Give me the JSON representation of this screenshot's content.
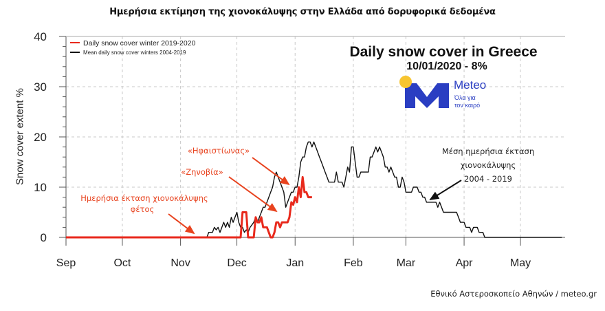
{
  "header": {
    "title": "Ημερήσια εκτίμηση της χιονοκάλυψης στην Ελλάδα από δορυφορικά δεδομένα"
  },
  "footer": {
    "source": "Εθνικό Αστεροσκοπείο Αθηνών / meteo.gr"
  },
  "overlay": {
    "chart_title": "Daily snow cover in Greece",
    "date_value": "10/01/2020 - 8%",
    "logo_name": "Meteo",
    "logo_tagline_1": "Όλα για",
    "logo_tagline_2": "τον καιρό",
    "brand_blue": "#2a3ec2",
    "brand_yellow": "#f7c531"
  },
  "annotations": {
    "current_label_1": "Ημερήσια έκταση χιονοκάλυψης",
    "current_label_2": "φέτος",
    "storm_1": "«Ζηνοβία»",
    "storm_2": "«Ηφαιστίωνας»",
    "mean_label_1": "Μέση ημερήσια έκταση",
    "mean_label_2": "χιονοκάλυψης",
    "mean_label_3": "2004 - 2019",
    "annotation_color": "#e8431f"
  },
  "chart_data": {
    "type": "line",
    "title": "Daily snow cover in Greece",
    "subtitle": "10/01/2020 - 8%",
    "xlabel": "",
    "ylabel": "Snow cover extent %",
    "ylim": [
      0,
      40
    ],
    "yticks": [
      0,
      10,
      20,
      30,
      40
    ],
    "xticks": [
      "Sep",
      "Oct",
      "Nov",
      "Dec",
      "Jan",
      "Feb",
      "Mar",
      "Apr",
      "May"
    ],
    "x_unit": "days since 1 Sep",
    "xlim": [
      0,
      264
    ],
    "grid": true,
    "legend_position": "upper left",
    "legend": [
      "Daily snow cover winter 2019-2020",
      "Mean daily snow cover winters 2004-2019"
    ],
    "series": [
      {
        "name": "Daily snow cover winter 2019-2020",
        "color": "#e8291c",
        "points": [
          [
            0,
            0
          ],
          [
            92,
            0
          ],
          [
            93,
            0
          ],
          [
            94,
            5
          ],
          [
            96,
            5
          ],
          [
            97,
            0
          ],
          [
            99,
            0
          ],
          [
            100,
            0
          ],
          [
            101,
            4
          ],
          [
            102,
            3
          ],
          [
            103,
            3
          ],
          [
            104,
            4
          ],
          [
            105,
            2
          ],
          [
            107,
            2
          ],
          [
            108,
            1
          ],
          [
            109,
            0
          ],
          [
            110,
            0
          ],
          [
            111,
            1
          ],
          [
            112,
            3
          ],
          [
            113,
            3
          ],
          [
            114,
            2
          ],
          [
            115,
            3
          ],
          [
            118,
            3
          ],
          [
            119,
            4
          ],
          [
            120,
            7
          ],
          [
            121,
            6.5
          ],
          [
            122,
            8
          ],
          [
            123,
            7
          ],
          [
            124,
            10
          ],
          [
            125,
            8
          ],
          [
            126,
            12
          ],
          [
            127,
            9
          ],
          [
            128,
            9
          ],
          [
            129,
            8
          ],
          [
            131,
            8
          ]
        ]
      },
      {
        "name": "Mean daily snow cover winters 2004-2019",
        "color": "#111111",
        "points": [
          [
            0,
            0
          ],
          [
            75,
            0
          ],
          [
            76,
            1
          ],
          [
            78,
            1
          ],
          [
            79,
            2
          ],
          [
            80,
            1.5
          ],
          [
            81,
            2
          ],
          [
            82,
            1
          ],
          [
            83,
            2
          ],
          [
            84,
            3
          ],
          [
            85,
            2
          ],
          [
            86,
            3
          ],
          [
            87,
            2
          ],
          [
            88,
            4
          ],
          [
            89,
            3
          ],
          [
            90,
            4
          ],
          [
            91,
            5
          ],
          [
            92,
            3
          ],
          [
            93,
            2
          ],
          [
            94,
            2
          ],
          [
            95,
            1
          ],
          [
            96,
            1.5
          ],
          [
            97,
            1
          ],
          [
            98,
            2
          ],
          [
            99,
            2.5
          ],
          [
            100,
            3
          ],
          [
            101,
            4
          ],
          [
            102,
            3
          ],
          [
            103,
            4
          ],
          [
            104,
            5
          ],
          [
            105,
            6
          ],
          [
            106,
            6
          ],
          [
            107,
            7
          ],
          [
            108,
            8
          ],
          [
            109,
            9
          ],
          [
            110,
            10
          ],
          [
            111,
            12
          ],
          [
            112,
            13
          ],
          [
            113,
            12
          ],
          [
            114,
            11
          ],
          [
            115,
            10
          ],
          [
            116,
            9
          ],
          [
            117,
            6
          ],
          [
            118,
            7
          ],
          [
            119,
            8
          ],
          [
            120,
            9
          ],
          [
            121,
            9
          ],
          [
            122,
            10
          ],
          [
            123,
            10
          ],
          [
            124,
            12
          ],
          [
            125,
            15
          ],
          [
            126,
            16
          ],
          [
            127,
            16
          ],
          [
            128,
            18
          ],
          [
            129,
            19
          ],
          [
            130,
            19
          ],
          [
            131,
            18
          ],
          [
            132,
            19
          ],
          [
            133,
            18
          ],
          [
            134,
            17
          ],
          [
            135,
            16
          ],
          [
            136,
            15
          ],
          [
            137,
            14
          ],
          [
            138,
            13
          ],
          [
            139,
            12
          ],
          [
            140,
            11
          ],
          [
            141,
            11
          ],
          [
            142,
            11
          ],
          [
            143,
            11
          ],
          [
            144,
            13
          ],
          [
            145,
            11
          ],
          [
            146,
            11
          ],
          [
            147,
            11
          ],
          [
            148,
            10
          ],
          [
            149,
            12
          ],
          [
            150,
            14
          ],
          [
            151,
            13
          ],
          [
            152,
            18
          ],
          [
            153,
            18
          ],
          [
            154,
            15
          ],
          [
            155,
            12
          ],
          [
            156,
            12
          ],
          [
            157,
            13
          ],
          [
            158,
            13
          ],
          [
            159,
            13
          ],
          [
            160,
            13
          ],
          [
            161,
            13
          ],
          [
            162,
            16
          ],
          [
            163,
            16
          ],
          [
            164,
            17
          ],
          [
            165,
            18
          ],
          [
            166,
            17
          ],
          [
            167,
            18
          ],
          [
            168,
            17
          ],
          [
            169,
            16
          ],
          [
            170,
            14
          ],
          [
            171,
            14
          ],
          [
            172,
            13
          ],
          [
            173,
            14
          ],
          [
            174,
            13
          ],
          [
            175,
            12
          ],
          [
            176,
            12
          ],
          [
            177,
            10
          ],
          [
            178,
            10
          ],
          [
            179,
            12
          ],
          [
            180,
            11
          ],
          [
            181,
            9
          ],
          [
            182,
            9
          ],
          [
            183,
            9
          ],
          [
            184,
            9
          ],
          [
            185,
            10
          ],
          [
            186,
            10
          ],
          [
            187,
            10
          ],
          [
            188,
            9
          ],
          [
            189,
            9
          ],
          [
            190,
            8
          ],
          [
            191,
            8
          ],
          [
            192,
            7
          ],
          [
            193,
            7
          ],
          [
            194,
            7
          ],
          [
            195,
            7
          ],
          [
            196,
            7
          ],
          [
            197,
            7
          ],
          [
            198,
            6
          ],
          [
            199,
            7
          ],
          [
            200,
            6
          ],
          [
            201,
            5
          ],
          [
            202,
            5
          ],
          [
            203,
            5
          ],
          [
            204,
            5
          ],
          [
            205,
            5
          ],
          [
            206,
            5
          ],
          [
            207,
            5
          ],
          [
            208,
            5
          ],
          [
            209,
            4
          ],
          [
            210,
            3
          ],
          [
            211,
            3
          ],
          [
            212,
            3
          ],
          [
            213,
            2
          ],
          [
            214,
            2
          ],
          [
            215,
            2
          ],
          [
            216,
            1
          ],
          [
            217,
            2
          ],
          [
            218,
            2
          ],
          [
            219,
            2
          ],
          [
            220,
            1
          ],
          [
            221,
            1
          ],
          [
            222,
            1
          ],
          [
            223,
            0
          ],
          [
            264,
            0
          ]
        ]
      }
    ]
  }
}
